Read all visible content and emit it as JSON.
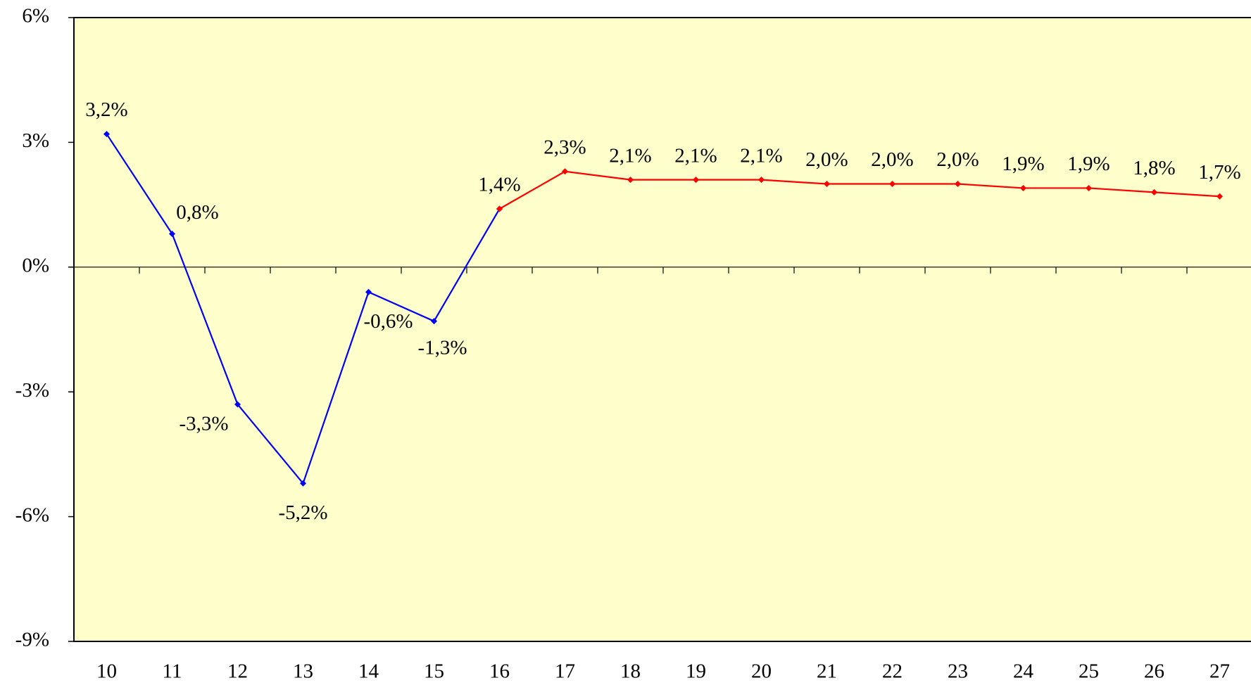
{
  "chart_data": {
    "type": "line",
    "categories": [
      "10",
      "11",
      "12",
      "13",
      "14",
      "15",
      "16",
      "17",
      "18",
      "19",
      "20",
      "21",
      "22",
      "23",
      "24",
      "25",
      "26",
      "27"
    ],
    "series": [
      {
        "color": "#0000ff",
        "values": [
          3.2,
          0.8,
          -3.3,
          -5.2,
          -0.6,
          -1.3,
          1.4,
          null,
          null,
          null,
          null,
          null,
          null,
          null,
          null,
          null,
          null,
          null
        ],
        "value_labels": [
          "3,2%",
          "0,8%",
          "-3,3%",
          "-5,2%",
          "-0,6%",
          "-1,3%",
          "1,4%",
          null,
          null,
          null,
          null,
          null,
          null,
          null,
          null,
          null,
          null,
          null
        ]
      },
      {
        "color": "#ff0000",
        "values": [
          null,
          null,
          null,
          null,
          null,
          null,
          1.4,
          2.3,
          2.1,
          2.1,
          2.1,
          2.0,
          2.0,
          2.0,
          1.9,
          1.9,
          1.8,
          1.7
        ],
        "value_labels": [
          null,
          null,
          null,
          null,
          null,
          null,
          null,
          "2,3%",
          "2,1%",
          "2,1%",
          "2,1%",
          "2,0%",
          "2,0%",
          "2,0%",
          "1,9%",
          "1,9%",
          "1,8%",
          "1,7%"
        ]
      }
    ],
    "ylim": [
      -9,
      6
    ],
    "yticks": [
      {
        "value": -9,
        "label": "-9%"
      },
      {
        "value": -6,
        "label": "-6%"
      },
      {
        "value": -3,
        "label": "-3%"
      },
      {
        "value": 0,
        "label": "0%"
      },
      {
        "value": 3,
        "label": "3%"
      },
      {
        "value": 6,
        "label": "6%"
      }
    ],
    "plot_background": "#ffffcc"
  }
}
